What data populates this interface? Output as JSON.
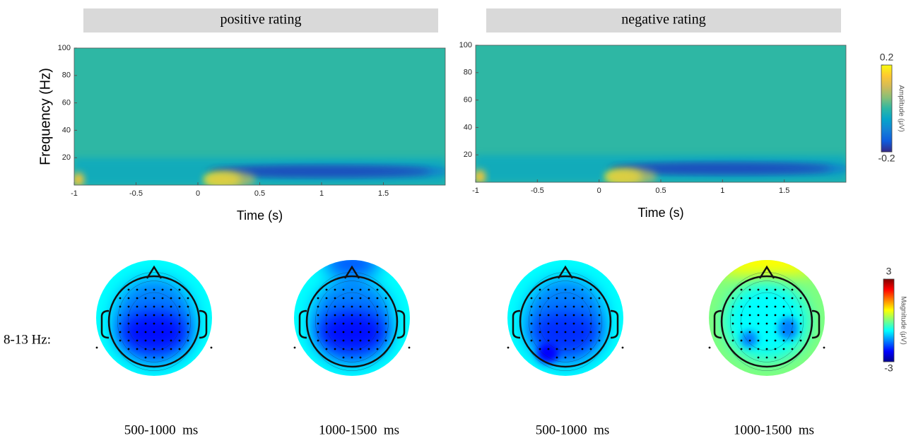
{
  "chart_data": [
    {
      "type": "heatmap",
      "title": "positive rating",
      "x_label": "Time (s)",
      "y_label": "Frequency (Hz)",
      "xlim": [
        -1,
        2
      ],
      "xticks": [
        -1,
        -0.5,
        0,
        0.5,
        1,
        1.5
      ],
      "ylim": [
        0,
        100
      ],
      "yticks": [
        20,
        40,
        60,
        80,
        100
      ]
    },
    {
      "type": "heatmap",
      "title": "negative rating",
      "x_label": "Time (s)",
      "xlim": [
        -1,
        2
      ],
      "xticks": [
        -1,
        -0.5,
        0,
        0.5,
        1,
        1.5
      ],
      "ylim": [
        0,
        100
      ],
      "yticks": [
        20,
        40,
        60,
        80,
        100
      ]
    },
    {
      "type": "colorbar",
      "label": "Amplitude (μV)",
      "lim": [
        -0.2,
        0.2
      ],
      "ticks": [
        -0.2,
        0.2
      ],
      "colors": [
        "#352a87",
        "#0f5cdd",
        "#1481d6",
        "#06a4ca",
        "#2eb7a4",
        "#87bf77",
        "#d1bb59",
        "#fec832",
        "#f9fb0e"
      ]
    },
    {
      "type": "topoplot",
      "row_label": "8-13 Hz:",
      "maps": [
        {
          "label": "500-1000  ms"
        },
        {
          "label": "1000-1500  ms"
        },
        {
          "label": "500-1000  ms"
        },
        {
          "label": "1000-1500  ms"
        }
      ]
    },
    {
      "type": "colorbar",
      "label": "Magnitude (μV)",
      "lim": [
        -3,
        3
      ],
      "ticks": [
        -3,
        3
      ],
      "colors": [
        "#00008f",
        "#0000ff",
        "#0080ff",
        "#00ffff",
        "#7fff7f",
        "#ffff00",
        "#ff8000",
        "#ff0000",
        "#800000"
      ]
    }
  ]
}
